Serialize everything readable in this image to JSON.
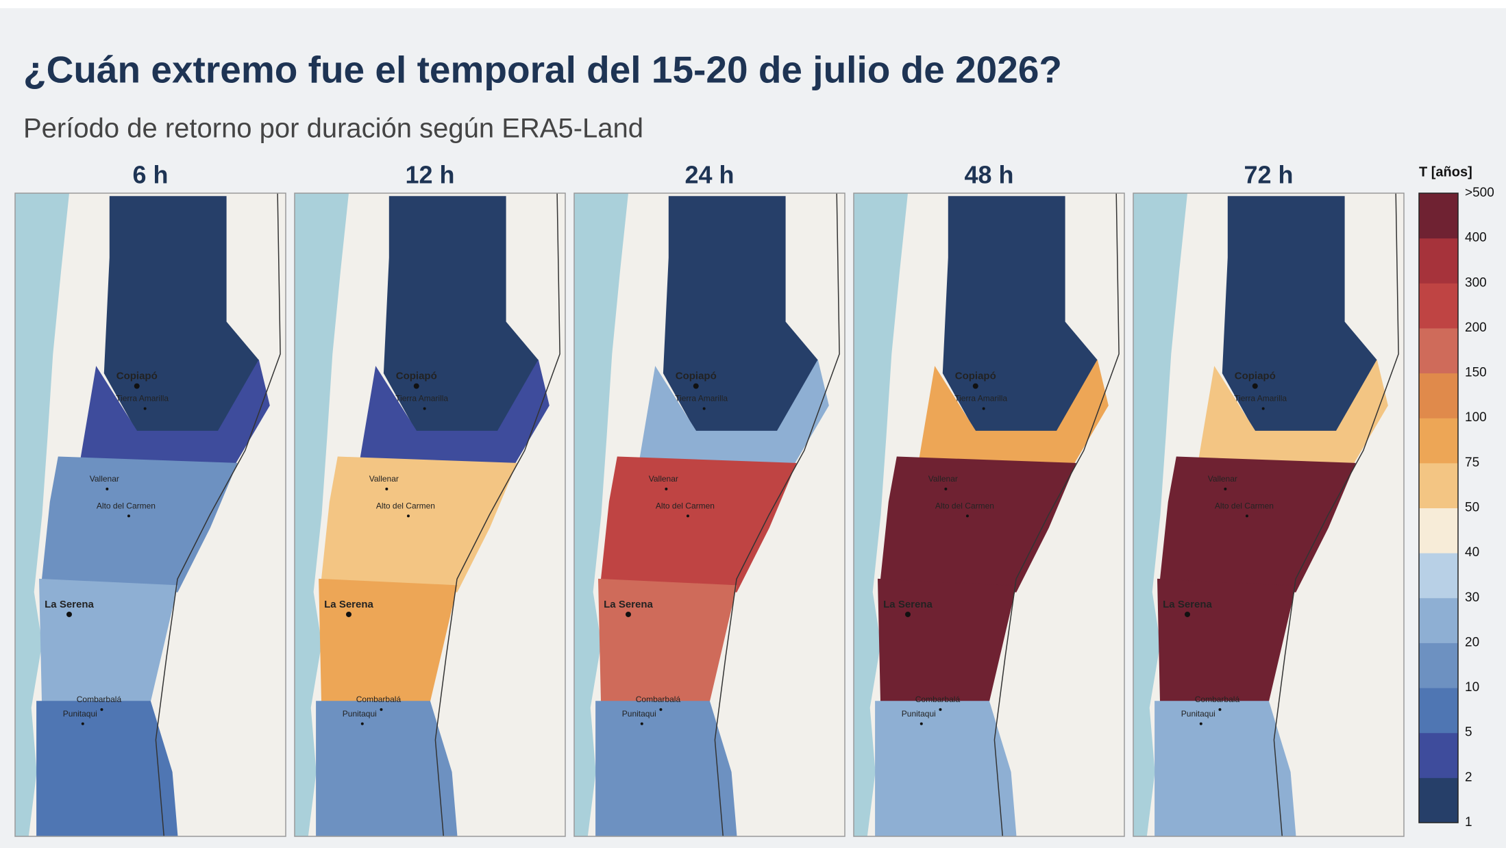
{
  "header": {
    "title": "¿Cuán extremo fue el temporal del 15-20 de julio de 2026?",
    "subtitle": "Período de retorno por duración según ERA5-Land"
  },
  "panels": [
    {
      "label": "6 h"
    },
    {
      "label": "12 h"
    },
    {
      "label": "24 h"
    },
    {
      "label": "48 h"
    },
    {
      "label": "72 h"
    }
  ],
  "places": [
    "Copiapó",
    "Tierra Amarilla",
    "Vallenar",
    "Alto del Carmen",
    "La Serena",
    "Combarbalá",
    "Punitaqui"
  ],
  "colorbar": {
    "title": "T [años]",
    "ticks": [
      "1",
      "2",
      "5",
      "10",
      "20",
      "30",
      "40",
      "50",
      "75",
      "100",
      "150",
      "200",
      "300",
      "400",
      ">500"
    ],
    "colors": [
      "#263f69",
      "#3e4c9c",
      "#4f76b3",
      "#6d91c1",
      "#8eafd3",
      "#b8d0e6",
      "#f7ecd8",
      "#f3c583",
      "#eda656",
      "#e08a4b",
      "#cf6b5a",
      "#bf4443",
      "#a6333b",
      "#6f2232"
    ]
  }
}
